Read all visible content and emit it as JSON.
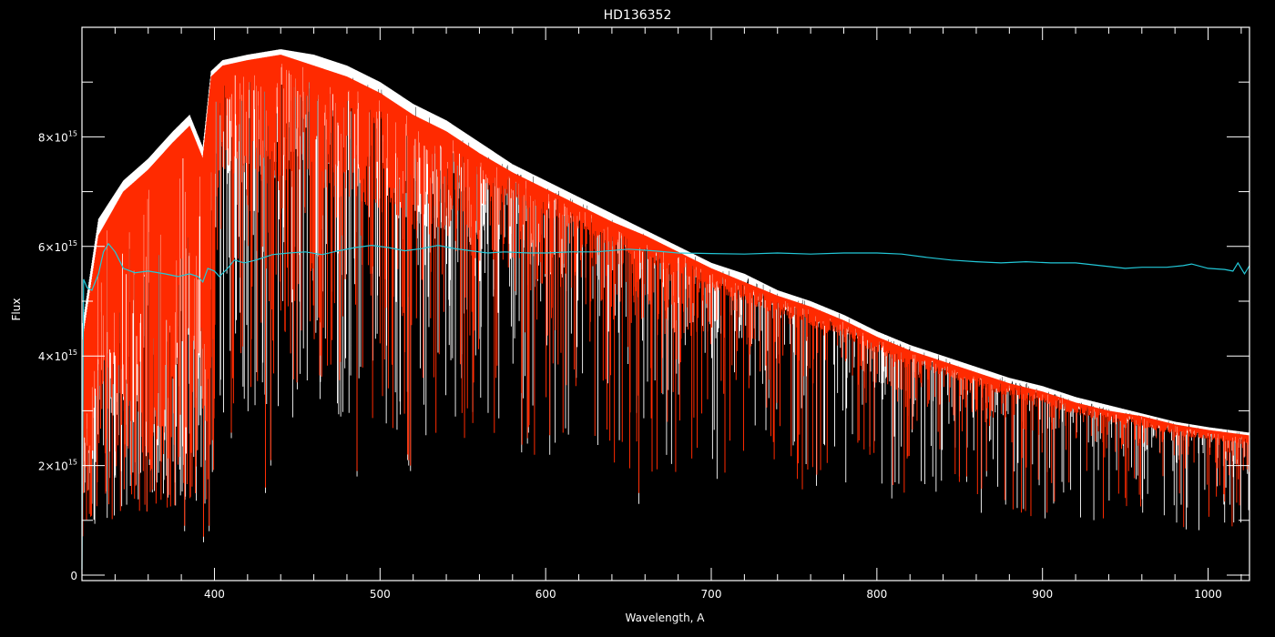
{
  "chart_data": {
    "type": "line",
    "title": "HD136352",
    "xlabel": "Wavelength, A",
    "ylabel": "Flux",
    "xlim": [
      320,
      1025
    ],
    "ylim": [
      -0.1,
      10.0
    ],
    "y_scale_note_exponent": 15,
    "x_ticks": [
      400,
      500,
      600,
      700,
      800,
      900,
      1000
    ],
    "x_tick_labels": [
      "400",
      "500",
      "600",
      "700",
      "800",
      "900",
      "1000"
    ],
    "y_ticks": [
      0,
      2,
      4,
      6,
      8
    ],
    "y_tick_labels": [
      {
        "mantissa": "0",
        "exponent": ""
      },
      {
        "mantissa": "2×10",
        "exponent": "15"
      },
      {
        "mantissa": "4×10",
        "exponent": "15"
      },
      {
        "mantissa": "6×10",
        "exponent": "15"
      },
      {
        "mantissa": "8×10",
        "exponent": "15"
      }
    ],
    "y_units_note": "flux values in units of 10^15",
    "series": [
      {
        "color": "#ffffff",
        "style": "dense absorption-line spectrum",
        "upper_envelope": [
          [
            320,
            4.5
          ],
          [
            330,
            6.5
          ],
          [
            345,
            7.2
          ],
          [
            360,
            7.6
          ],
          [
            375,
            8.1
          ],
          [
            385,
            8.4
          ],
          [
            393,
            7.8
          ],
          [
            398,
            9.2
          ],
          [
            405,
            9.4
          ],
          [
            420,
            9.5
          ],
          [
            440,
            9.6
          ],
          [
            460,
            9.5
          ],
          [
            480,
            9.3
          ],
          [
            500,
            9.0
          ],
          [
            520,
            8.6
          ],
          [
            540,
            8.3
          ],
          [
            560,
            7.9
          ],
          [
            580,
            7.5
          ],
          [
            600,
            7.2
          ],
          [
            620,
            6.9
          ],
          [
            640,
            6.6
          ],
          [
            660,
            6.3
          ],
          [
            680,
            6.0
          ],
          [
            700,
            5.7
          ],
          [
            720,
            5.5
          ],
          [
            740,
            5.2
          ],
          [
            760,
            5.0
          ],
          [
            780,
            4.75
          ],
          [
            800,
            4.45
          ],
          [
            820,
            4.2
          ],
          [
            840,
            4.0
          ],
          [
            860,
            3.8
          ],
          [
            880,
            3.6
          ],
          [
            900,
            3.45
          ],
          [
            920,
            3.25
          ],
          [
            940,
            3.1
          ],
          [
            960,
            2.95
          ],
          [
            980,
            2.8
          ],
          [
            1000,
            2.7
          ],
          [
            1025,
            2.6
          ]
        ],
        "strong_lines": [
          [
            382.0,
            0.8
          ],
          [
            393.4,
            0.6
          ],
          [
            396.8,
            0.8
          ],
          [
            410.2,
            2.5
          ],
          [
            430.8,
            1.5
          ],
          [
            434.0,
            2.0
          ],
          [
            486.1,
            1.8
          ],
          [
            516.7,
            2.1
          ],
          [
            517.3,
            2.0
          ],
          [
            518.4,
            1.9
          ],
          [
            589.0,
            2.4
          ],
          [
            589.6,
            2.6
          ],
          [
            656.3,
            1.3
          ],
          [
            670.8,
            3.3
          ],
          [
            849.8,
            1.8
          ],
          [
            854.2,
            1.7
          ],
          [
            866.2,
            1.8
          ]
        ]
      },
      {
        "color": "#ff2a00",
        "style": "dense absorption-line model spectrum",
        "upper_envelope": [
          [
            320,
            4.2
          ],
          [
            330,
            6.2
          ],
          [
            345,
            7.0
          ],
          [
            360,
            7.4
          ],
          [
            375,
            7.9
          ],
          [
            385,
            8.2
          ],
          [
            393,
            7.6
          ],
          [
            398,
            9.1
          ],
          [
            405,
            9.3
          ],
          [
            420,
            9.4
          ],
          [
            440,
            9.5
          ],
          [
            460,
            9.3
          ],
          [
            480,
            9.1
          ],
          [
            500,
            8.8
          ],
          [
            520,
            8.4
          ],
          [
            540,
            8.1
          ],
          [
            560,
            7.7
          ],
          [
            580,
            7.35
          ],
          [
            600,
            7.05
          ],
          [
            620,
            6.75
          ],
          [
            640,
            6.45
          ],
          [
            660,
            6.2
          ],
          [
            680,
            5.9
          ],
          [
            700,
            5.6
          ],
          [
            720,
            5.35
          ],
          [
            740,
            5.1
          ],
          [
            760,
            4.9
          ],
          [
            780,
            4.65
          ],
          [
            800,
            4.35
          ],
          [
            820,
            4.1
          ],
          [
            840,
            3.9
          ],
          [
            860,
            3.7
          ],
          [
            880,
            3.5
          ],
          [
            900,
            3.35
          ],
          [
            920,
            3.15
          ],
          [
            940,
            3.0
          ],
          [
            960,
            2.9
          ],
          [
            980,
            2.75
          ],
          [
            1000,
            2.65
          ],
          [
            1025,
            2.55
          ]
        ],
        "strong_lines": [
          [
            382.0,
            0.9
          ],
          [
            393.4,
            0.7
          ],
          [
            396.8,
            0.9
          ],
          [
            410.2,
            2.6
          ],
          [
            430.8,
            1.6
          ],
          [
            434.0,
            2.1
          ],
          [
            486.1,
            1.9
          ],
          [
            516.7,
            2.2
          ],
          [
            517.3,
            2.1
          ],
          [
            518.4,
            2.0
          ],
          [
            589.0,
            2.5
          ],
          [
            589.6,
            2.7
          ],
          [
            656.3,
            1.5
          ],
          [
            849.8,
            1.7
          ],
          [
            854.2,
            1.8
          ],
          [
            866.2,
            1.9
          ]
        ]
      },
      {
        "color": "#22c8d8",
        "style": "smooth ratio curve",
        "points": [
          [
            320,
            0.1
          ],
          [
            321,
            5.4
          ],
          [
            323,
            5.25
          ],
          [
            326,
            5.2
          ],
          [
            330,
            5.5
          ],
          [
            333,
            5.9
          ],
          [
            336,
            6.05
          ],
          [
            340,
            5.9
          ],
          [
            345,
            5.6
          ],
          [
            352,
            5.52
          ],
          [
            360,
            5.55
          ],
          [
            370,
            5.5
          ],
          [
            378,
            5.45
          ],
          [
            385,
            5.5
          ],
          [
            390,
            5.45
          ],
          [
            393,
            5.35
          ],
          [
            396,
            5.6
          ],
          [
            400,
            5.55
          ],
          [
            403,
            5.45
          ],
          [
            408,
            5.6
          ],
          [
            412,
            5.75
          ],
          [
            418,
            5.7
          ],
          [
            425,
            5.75
          ],
          [
            435,
            5.85
          ],
          [
            445,
            5.88
          ],
          [
            455,
            5.9
          ],
          [
            465,
            5.85
          ],
          [
            475,
            5.92
          ],
          [
            485,
            5.98
          ],
          [
            495,
            6.02
          ],
          [
            505,
            5.98
          ],
          [
            515,
            5.92
          ],
          [
            525,
            5.96
          ],
          [
            535,
            6.02
          ],
          [
            545,
            5.96
          ],
          [
            555,
            5.92
          ],
          [
            565,
            5.88
          ],
          [
            575,
            5.9
          ],
          [
            590,
            5.88
          ],
          [
            600,
            5.88
          ],
          [
            615,
            5.9
          ],
          [
            630,
            5.9
          ],
          [
            650,
            5.95
          ],
          [
            665,
            5.92
          ],
          [
            680,
            5.88
          ],
          [
            700,
            5.87
          ],
          [
            720,
            5.86
          ],
          [
            740,
            5.88
          ],
          [
            760,
            5.86
          ],
          [
            780,
            5.88
          ],
          [
            800,
            5.88
          ],
          [
            815,
            5.86
          ],
          [
            830,
            5.8
          ],
          [
            845,
            5.75
          ],
          [
            860,
            5.72
          ],
          [
            875,
            5.7
          ],
          [
            890,
            5.72
          ],
          [
            905,
            5.7
          ],
          [
            920,
            5.7
          ],
          [
            935,
            5.65
          ],
          [
            950,
            5.6
          ],
          [
            960,
            5.62
          ],
          [
            975,
            5.62
          ],
          [
            985,
            5.65
          ],
          [
            990,
            5.68
          ],
          [
            1000,
            5.6
          ],
          [
            1010,
            5.58
          ],
          [
            1015,
            5.55
          ],
          [
            1018,
            5.7
          ],
          [
            1020,
            5.6
          ],
          [
            1022,
            5.5
          ],
          [
            1025,
            5.65
          ]
        ]
      }
    ]
  },
  "colors": {
    "background": "#000000",
    "axes": "#ffffff",
    "observed": "#ffffff",
    "model": "#ff2a00",
    "ratio": "#22c8d8"
  }
}
